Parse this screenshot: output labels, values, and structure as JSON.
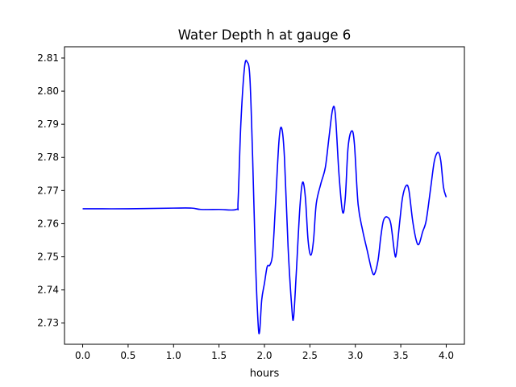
{
  "chart_data": {
    "type": "line",
    "title": "Water Depth h at gauge 6",
    "xlabel": "hours",
    "ylabel": "",
    "xlim": [
      -0.2,
      4.2
    ],
    "ylim": [
      2.7236,
      2.8134
    ],
    "xticks": [
      "0.0",
      "0.5",
      "1.0",
      "1.5",
      "2.0",
      "2.5",
      "3.0",
      "3.5",
      "4.0"
    ],
    "yticks": [
      "2.73",
      "2.74",
      "2.75",
      "2.76",
      "2.77",
      "2.78",
      "2.79",
      "2.80",
      "2.81"
    ],
    "grid": false,
    "legend": "none",
    "series": [
      {
        "color": "#0000ff",
        "points": [
          [
            0.0,
            2.7645
          ],
          [
            0.5,
            2.7645
          ],
          [
            1.0,
            2.7647
          ],
          [
            1.2,
            2.7647
          ],
          [
            1.3,
            2.7643
          ],
          [
            1.5,
            2.7643
          ],
          [
            1.69,
            2.7643
          ],
          [
            1.71,
            2.767
          ],
          [
            1.74,
            2.79
          ],
          [
            1.78,
            2.807
          ],
          [
            1.81,
            2.8088
          ],
          [
            1.84,
            2.804
          ],
          [
            1.87,
            2.78
          ],
          [
            1.9,
            2.75
          ],
          [
            1.93,
            2.73
          ],
          [
            1.947,
            2.7275
          ],
          [
            1.97,
            2.737
          ],
          [
            2.0,
            2.742
          ],
          [
            2.03,
            2.747
          ],
          [
            2.06,
            2.7475
          ],
          [
            2.09,
            2.751
          ],
          [
            2.12,
            2.765
          ],
          [
            2.16,
            2.785
          ],
          [
            2.19,
            2.7888
          ],
          [
            2.22,
            2.78
          ],
          [
            2.26,
            2.753
          ],
          [
            2.3,
            2.735
          ],
          [
            2.32,
            2.7315
          ],
          [
            2.35,
            2.745
          ],
          [
            2.39,
            2.765
          ],
          [
            2.42,
            2.7725
          ],
          [
            2.45,
            2.768
          ],
          [
            2.48,
            2.755
          ],
          [
            2.51,
            2.7505
          ],
          [
            2.54,
            2.755
          ],
          [
            2.57,
            2.766
          ],
          [
            2.62,
            2.772
          ],
          [
            2.67,
            2.777
          ],
          [
            2.71,
            2.786
          ],
          [
            2.75,
            2.7945
          ],
          [
            2.78,
            2.793
          ],
          [
            2.82,
            2.775
          ],
          [
            2.86,
            2.7635
          ],
          [
            2.89,
            2.768
          ],
          [
            2.92,
            2.783
          ],
          [
            2.96,
            2.788
          ],
          [
            2.99,
            2.784
          ],
          [
            3.03,
            2.766
          ],
          [
            3.08,
            2.758
          ],
          [
            3.13,
            2.752
          ],
          [
            3.18,
            2.746
          ],
          [
            3.21,
            2.7448
          ],
          [
            3.25,
            2.749
          ],
          [
            3.28,
            2.756
          ],
          [
            3.31,
            2.761
          ],
          [
            3.35,
            2.762
          ],
          [
            3.39,
            2.76
          ],
          [
            3.43,
            2.7515
          ],
          [
            3.45,
            2.7508
          ],
          [
            3.49,
            2.761
          ],
          [
            3.52,
            2.768
          ],
          [
            3.56,
            2.7715
          ],
          [
            3.59,
            2.77
          ],
          [
            3.63,
            2.761
          ],
          [
            3.67,
            2.755
          ],
          [
            3.7,
            2.7538
          ],
          [
            3.74,
            2.7575
          ],
          [
            3.78,
            2.761
          ],
          [
            3.83,
            2.771
          ],
          [
            3.87,
            2.779
          ],
          [
            3.91,
            2.7815
          ],
          [
            3.94,
            2.779
          ],
          [
            3.97,
            2.771
          ],
          [
            4.0,
            2.768
          ]
        ]
      }
    ]
  }
}
